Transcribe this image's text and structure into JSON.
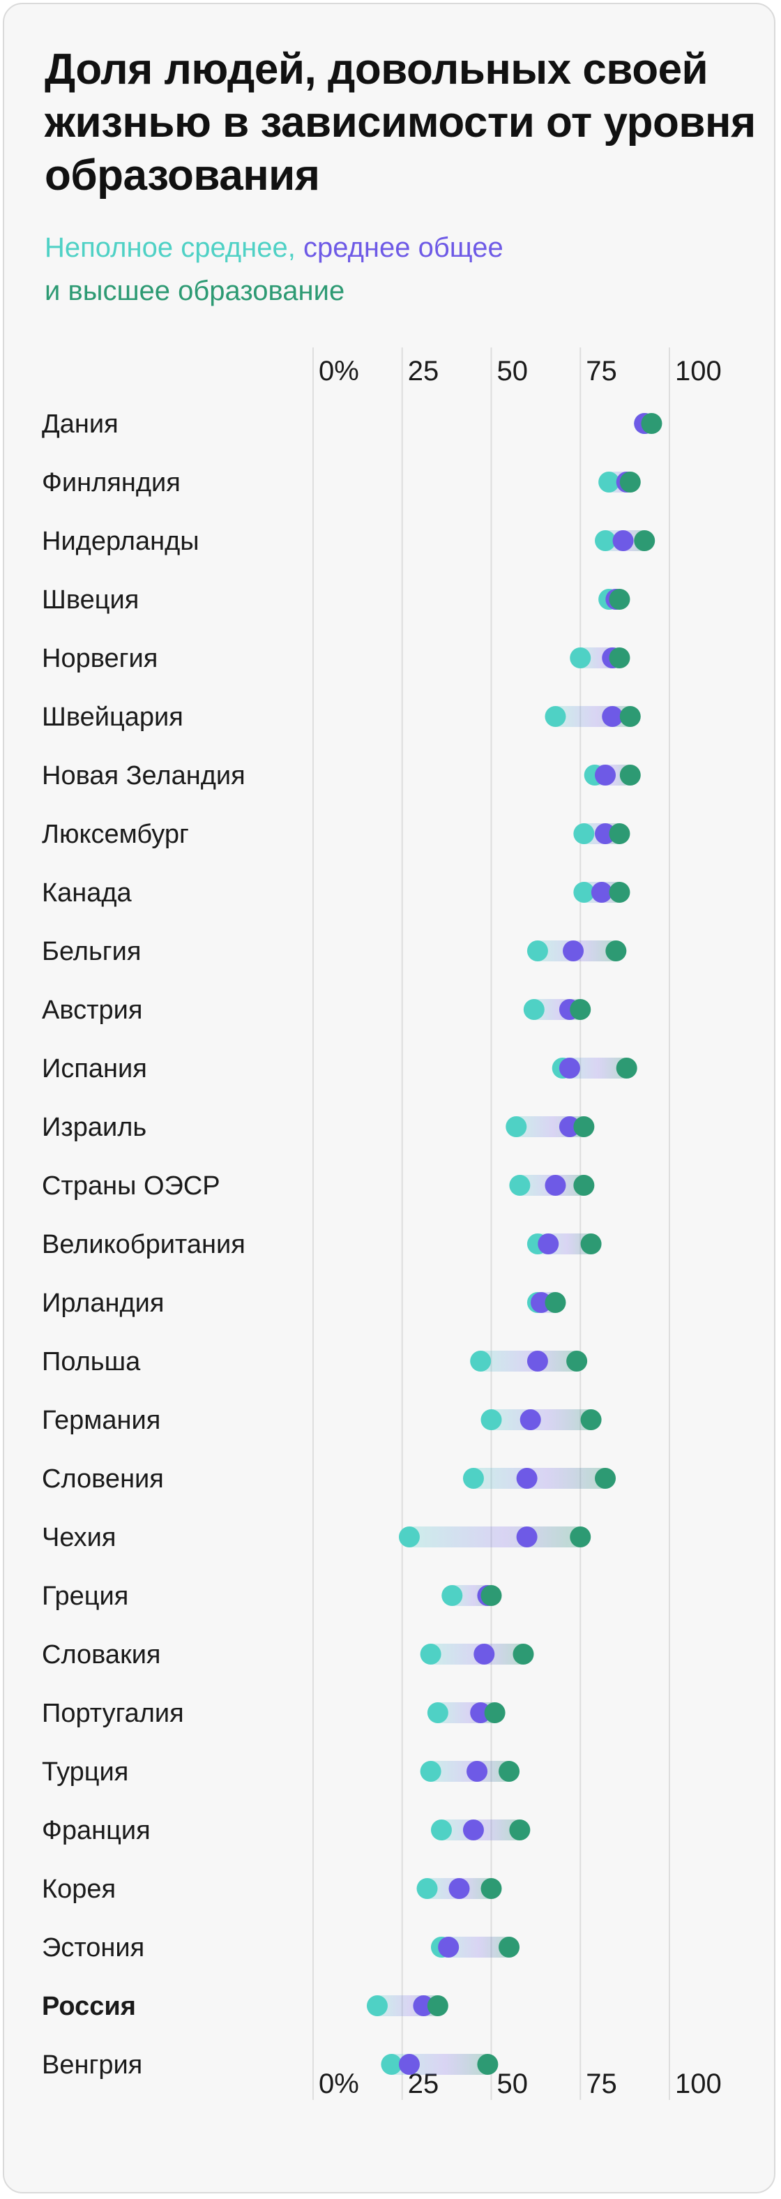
{
  "chart_data": {
    "type": "dot",
    "title": "Доля людей, довольных своей жизнью в зависимости от уровня образования",
    "legend": [
      {
        "text": "Неполное среднее,",
        "color": "#4fd1c5"
      },
      {
        "text": "среднее общее",
        "color": "#6e5ae6"
      },
      {
        "text": "и высшее образование",
        "color": "#2d9a73"
      }
    ],
    "xlim": [
      0,
      100
    ],
    "ticks": [
      "0%",
      "25",
      "50",
      "75",
      "100"
    ],
    "tick_values": [
      0,
      25,
      50,
      75,
      100
    ],
    "grid": true,
    "colors": {
      "low": "#4fd1c5",
      "mid": "#6e5ae6",
      "high": "#2d9a73"
    },
    "highlight": "Россия",
    "rows": [
      {
        "country": "Дания",
        "low": 93,
        "mid": 93,
        "high": 95
      },
      {
        "country": "Финляндия",
        "low": 83,
        "mid": 88,
        "high": 89
      },
      {
        "country": "Нидерланды",
        "low": 82,
        "mid": 87,
        "high": 93
      },
      {
        "country": "Швеция",
        "low": 83,
        "mid": 85,
        "high": 86
      },
      {
        "country": "Норвегия",
        "low": 75,
        "mid": 84,
        "high": 86
      },
      {
        "country": "Швейцария",
        "low": 68,
        "mid": 84,
        "high": 89
      },
      {
        "country": "Новая Зеландия",
        "low": 79,
        "mid": 82,
        "high": 89
      },
      {
        "country": "Люксембург",
        "low": 76,
        "mid": 82,
        "high": 86
      },
      {
        "country": "Канада",
        "low": 76,
        "mid": 81,
        "high": 86
      },
      {
        "country": "Бельгия",
        "low": 63,
        "mid": 73,
        "high": 85
      },
      {
        "country": "Австрия",
        "low": 62,
        "mid": 72,
        "high": 75
      },
      {
        "country": "Испания",
        "low": 70,
        "mid": 72,
        "high": 88
      },
      {
        "country": "Израиль",
        "low": 57,
        "mid": 72,
        "high": 76
      },
      {
        "country": "Страны ОЭСР",
        "low": 58,
        "mid": 68,
        "high": 76
      },
      {
        "country": "Великобритания",
        "low": 63,
        "mid": 66,
        "high": 78
      },
      {
        "country": "Ирландия",
        "low": 63,
        "mid": 64,
        "high": 68
      },
      {
        "country": "Польша",
        "low": 47,
        "mid": 63,
        "high": 74
      },
      {
        "country": "Германия",
        "low": 50,
        "mid": 61,
        "high": 78
      },
      {
        "country": "Словения",
        "low": 45,
        "mid": 60,
        "high": 82
      },
      {
        "country": "Чехия",
        "low": 27,
        "mid": 60,
        "high": 75
      },
      {
        "country": "Греция",
        "low": 39,
        "mid": 49,
        "high": 50
      },
      {
        "country": "Словакия",
        "low": 33,
        "mid": 48,
        "high": 59
      },
      {
        "country": "Португалия",
        "low": 35,
        "mid": 47,
        "high": 51
      },
      {
        "country": "Турция",
        "low": 33,
        "mid": 46,
        "high": 55
      },
      {
        "country": "Франция",
        "low": 36,
        "mid": 45,
        "high": 58
      },
      {
        "country": "Корея",
        "low": 32,
        "mid": 41,
        "high": 50
      },
      {
        "country": "Эстония",
        "low": 36,
        "mid": 38,
        "high": 55
      },
      {
        "country": "Россия",
        "low": 18,
        "mid": 31,
        "high": 35
      },
      {
        "country": "Венгрия",
        "low": 22,
        "mid": 27,
        "high": 49
      }
    ]
  }
}
